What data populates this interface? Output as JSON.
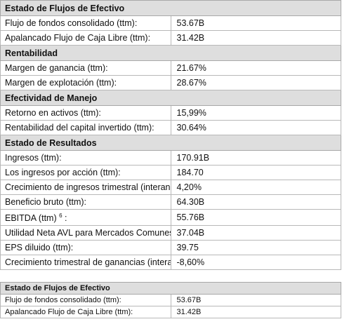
{
  "tables": [
    {
      "sections": [
        {
          "title": "Estado de Flujos de Efectivo",
          "rows": [
            {
              "label": "Flujo de fondos consolidado (ttm):",
              "value": "53.67B"
            },
            {
              "label": "Apalancado Flujo de Caja Libre (ttm):",
              "value": "31.42B"
            }
          ]
        },
        {
          "title": "Rentabilidad",
          "rows": [
            {
              "label": "Margen de ganancia (ttm):",
              "value": "21.67%"
            },
            {
              "label": "Margen de explotación (ttm):",
              "value": "28.67%"
            }
          ]
        },
        {
          "title": "Efectividad de Manejo",
          "rows": [
            {
              "label": "Retorno en activos (ttm):",
              "value": "15,99%"
            },
            {
              "label": "Rentabilidad del capital invertido (ttm):",
              "value": "30.64%"
            }
          ]
        },
        {
          "title": "Estado de Resultados",
          "rows": [
            {
              "label": "Ingresos (ttm):",
              "value": "170.91B"
            },
            {
              "label": "Los ingresos por acción (ttm):",
              "value": "184.70"
            },
            {
              "label": "Crecimiento de ingresos trimestral (interanual):",
              "value": "4,20%"
            },
            {
              "label": "Beneficio bruto (ttm):",
              "value": "64.30B"
            },
            {
              "label": "EBITDA (ttm)",
              "sup": "6",
              "suffix": ":",
              "value": "55.76B"
            },
            {
              "label": "Utilidad Neta AVL para Mercados Comunes (ttm):",
              "value": "37.04B"
            },
            {
              "label": "EPS diluido (ttm):",
              "value": "39.75"
            },
            {
              "label": "Crecimiento trimestral de ganancias (interanual):",
              "value": "-8,60%"
            }
          ]
        }
      ]
    },
    {
      "sections": [
        {
          "title": "Estado de Flujos de Efectivo",
          "rows": [
            {
              "label": "Flujo de fondos consolidado (ttm):",
              "value": "53.67B"
            },
            {
              "label": "Apalancado Flujo de Caja Libre (ttm):",
              "value": "31.42B"
            }
          ]
        }
      ]
    }
  ]
}
